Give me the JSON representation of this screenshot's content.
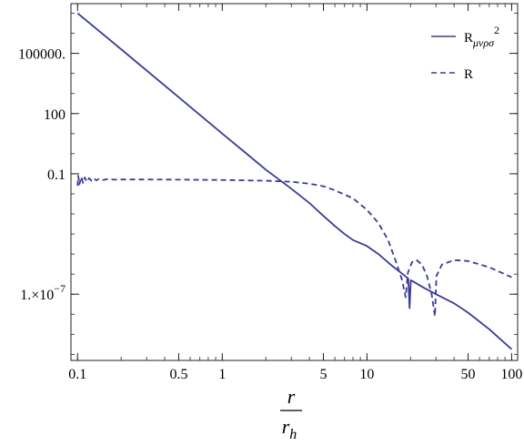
{
  "chart_data": {
    "type": "line",
    "title": "",
    "x_scale": "log",
    "y_scale": "log",
    "xlim": [
      0.09,
      110
    ],
    "ylim": [
      5e-11,
      30000000.0
    ],
    "xlabel_num": "r",
    "xlabel_den": "r",
    "xlabel_den_sub": "h",
    "grid": false,
    "legend_position": "top-right",
    "x_ticks": [
      {
        "value": 0.1,
        "label": "0.1"
      },
      {
        "value": 0.5,
        "label": "0.5"
      },
      {
        "value": 1,
        "label": "1"
      },
      {
        "value": 5,
        "label": "5"
      },
      {
        "value": 10,
        "label": "10"
      },
      {
        "value": 50,
        "label": "50"
      },
      {
        "value": 100,
        "label": "100"
      }
    ],
    "y_ticks": [
      {
        "value": 100000,
        "label": "100000.",
        "sup": ""
      },
      {
        "value": 100,
        "label": "100",
        "sup": ""
      },
      {
        "value": 0.1,
        "label": "0.1",
        "sup": ""
      },
      {
        "value": 1e-07,
        "label": "1.×10",
        "sup": "−7"
      }
    ],
    "series": [
      {
        "name": "R",
        "name_sub": "μνρσ",
        "name_sup": "2",
        "style": "solid",
        "color": "#3b3b96",
        "points": [
          [
            0.1,
            10000000
          ],
          [
            0.2,
            160000
          ],
          [
            0.5,
            650
          ],
          [
            1,
            10
          ],
          [
            1.5,
            0.9
          ],
          [
            2,
            0.16
          ],
          [
            3,
            0.018
          ],
          [
            4,
            0.0035
          ],
          [
            5,
            0.0008
          ],
          [
            6,
            0.00025
          ],
          [
            7,
            0.0001
          ],
          [
            8,
            5e-05
          ],
          [
            10,
            2.5e-05
          ],
          [
            12,
            1e-05
          ],
          [
            15,
            2.5e-06
          ],
          [
            18,
            9e-07
          ],
          [
            19.3,
            6e-07
          ],
          [
            19.7,
            2e-08
          ],
          [
            20.1,
            5e-07
          ],
          [
            25,
            2e-07
          ],
          [
            30,
            1e-07
          ],
          [
            40,
            3.5e-08
          ],
          [
            50,
            1.2e-08
          ],
          [
            70,
            1.8e-09
          ],
          [
            100,
            1.8e-10
          ]
        ]
      },
      {
        "name": "R",
        "name_sub": "",
        "name_sup": "",
        "style": "dashed",
        "color": "#3b3b96",
        "points": [
          [
            0.1,
            0.025
          ],
          [
            0.101,
            0.08
          ],
          [
            0.103,
            0.03
          ],
          [
            0.106,
            0.07
          ],
          [
            0.109,
            0.035
          ],
          [
            0.112,
            0.065
          ],
          [
            0.116,
            0.04
          ],
          [
            0.12,
            0.06
          ],
          [
            0.125,
            0.045
          ],
          [
            0.13,
            0.058
          ],
          [
            0.135,
            0.047
          ],
          [
            0.14,
            0.055
          ],
          [
            0.15,
            0.049
          ],
          [
            0.16,
            0.054
          ],
          [
            0.18,
            0.051
          ],
          [
            0.2,
            0.052
          ],
          [
            0.3,
            0.052
          ],
          [
            0.5,
            0.051
          ],
          [
            1,
            0.049
          ],
          [
            2,
            0.045
          ],
          [
            3,
            0.04
          ],
          [
            4,
            0.032
          ],
          [
            5,
            0.024
          ],
          [
            6,
            0.015
          ],
          [
            8,
            0.006
          ],
          [
            10,
            0.0016
          ],
          [
            12,
            0.00035
          ],
          [
            14,
            5e-05
          ],
          [
            16,
            3.5e-06
          ],
          [
            17.5,
            5e-07
          ],
          [
            18.5,
            7e-08
          ],
          [
            19.2,
            1.2e-06
          ],
          [
            20.5,
            4e-06
          ],
          [
            22,
            5e-06
          ],
          [
            24,
            3e-06
          ],
          [
            26,
            8e-07
          ],
          [
            28,
            1e-07
          ],
          [
            29.5,
            8e-09
          ],
          [
            30.2,
            8e-07
          ],
          [
            33,
            3e-06
          ],
          [
            40,
            5e-06
          ],
          [
            50,
            4.5e-06
          ],
          [
            70,
            2.2e-06
          ],
          [
            100,
            7e-07
          ]
        ]
      }
    ]
  }
}
